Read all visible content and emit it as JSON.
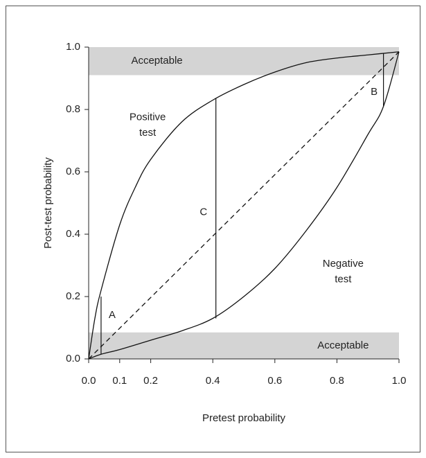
{
  "chart_data": {
    "type": "line",
    "xlabel": "Pretest probability",
    "ylabel": "Post-test probability",
    "xlim": [
      0,
      1.0
    ],
    "ylim": [
      0,
      1.0
    ],
    "xticks": [
      {
        "value": 0,
        "label": "0.0"
      },
      0.1,
      0.2,
      0.4,
      0.6,
      0.8,
      {
        "value": 1,
        "label": "1.0"
      }
    ],
    "yticks": [
      {
        "value": 0,
        "label": "0.0"
      },
      0.2,
      0.4,
      0.6,
      0.8,
      {
        "value": 1,
        "label": "1.0"
      }
    ],
    "series": [
      {
        "name": "Positive test",
        "color": "#111111",
        "style": "solid",
        "x": [
          0,
          0.02,
          0.04,
          0.1,
          0.15,
          0.2,
          0.3,
          0.4,
          0.5,
          0.6,
          0.7,
          0.8,
          0.9,
          1.0
        ],
        "values": [
          0,
          0.13,
          0.22,
          0.43,
          0.55,
          0.64,
          0.76,
          0.83,
          0.88,
          0.92,
          0.95,
          0.965,
          0.975,
          0.985
        ]
      },
      {
        "name": "Negative test",
        "color": "#111111",
        "style": "solid",
        "x": [
          0,
          0.04,
          0.1,
          0.2,
          0.3,
          0.4,
          0.5,
          0.6,
          0.7,
          0.8,
          0.9,
          0.95,
          1.0
        ],
        "values": [
          0,
          0.015,
          0.03,
          0.06,
          0.09,
          0.13,
          0.2,
          0.29,
          0.41,
          0.55,
          0.72,
          0.81,
          0.985
        ]
      },
      {
        "color": "#111111",
        "style": "dashed",
        "x": [
          0,
          1.0
        ],
        "values": [
          0,
          0.985
        ]
      }
    ],
    "bands": [
      {
        "label": "Acceptable",
        "range": [
          0.91,
          1.0
        ],
        "color": "#d4d4d4"
      },
      {
        "label": "Acceptable",
        "range": [
          0,
          0.085
        ],
        "color": "#d4d4d4"
      }
    ],
    "segments": [
      {
        "label": "A",
        "x": 0.04,
        "y": [
          0.015,
          0.2
        ]
      },
      {
        "label": "C",
        "x": 0.41,
        "y": [
          0.13,
          0.835
        ]
      },
      {
        "label": "B",
        "x": 0.95,
        "y": [
          0.81,
          0.98
        ]
      }
    ]
  }
}
